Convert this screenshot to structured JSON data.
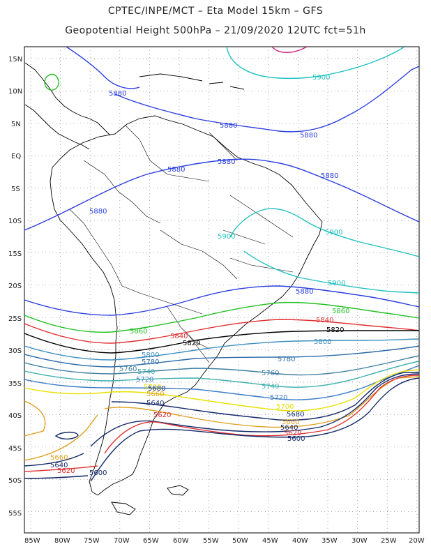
{
  "title_line1": "CPTEC/INPE/MCT –  Eta Model 15km – GFS",
  "title_line2": "Geopotential Height 500hPa – 21/09/2020 12UTC fct=51h",
  "axes": {
    "lat_labels": [
      "15N",
      "10N",
      "5N",
      "EQ",
      "5S",
      "10S",
      "15S",
      "20S",
      "25S",
      "30S",
      "35S",
      "40S",
      "45S",
      "50S",
      "55S"
    ],
    "lon_labels": [
      "85W",
      "80W",
      "75W",
      "70W",
      "65W",
      "60W",
      "55W",
      "50W",
      "45W",
      "40W",
      "35W",
      "30W",
      "25W",
      "20W"
    ]
  },
  "contour_colors": {
    "5900": "#1fc0c0",
    "5880": "#2a3ee0",
    "5860": "#20c020",
    "5840": "#e03030",
    "5820": "#000000",
    "5800": "#3d8fc0",
    "5780": "#2a6aa8",
    "5760": "#3d7fa0",
    "5740": "#3fb0b0",
    "5720": "#3a7cc8",
    "5700": "#e8e000",
    "5680": "#142a6a",
    "5660": "#e0a020",
    "5640": "#142a6a",
    "5620": "#e03030",
    "5600": "#142a6a"
  },
  "contour_labels": [
    {
      "text": "5900",
      "level": "5900"
    },
    {
      "text": "5880",
      "level": "5880"
    },
    {
      "text": "5880",
      "level": "5880"
    },
    {
      "text": "5880",
      "level": "5880"
    },
    {
      "text": "5880",
      "level": "5880"
    },
    {
      "text": "5880",
      "level": "5880"
    },
    {
      "text": "5880",
      "level": "5880"
    },
    {
      "text": "5900",
      "level": "5900"
    },
    {
      "text": "5900",
      "level": "5900"
    },
    {
      "text": "5900",
      "level": "5900"
    },
    {
      "text": "5880",
      "level": "5880"
    },
    {
      "text": "5880",
      "level": "5880"
    },
    {
      "text": "5860",
      "level": "5860"
    },
    {
      "text": "5840",
      "level": "5840"
    },
    {
      "text": "5820",
      "level": "5820"
    },
    {
      "text": "5860",
      "level": "5860"
    },
    {
      "text": "5840",
      "level": "5840"
    },
    {
      "text": "5820",
      "level": "5820"
    },
    {
      "text": "5800",
      "level": "5800"
    },
    {
      "text": "5800",
      "level": "5800"
    },
    {
      "text": "5780",
      "level": "5780"
    },
    {
      "text": "5760",
      "level": "5760"
    },
    {
      "text": "5740",
      "level": "5740"
    },
    {
      "text": "5720",
      "level": "5720"
    },
    {
      "text": "5780",
      "level": "5780"
    },
    {
      "text": "5760",
      "level": "5760"
    },
    {
      "text": "5740",
      "level": "5740"
    },
    {
      "text": "5720",
      "level": "5720"
    },
    {
      "text": "5700",
      "level": "5700"
    },
    {
      "text": "5680",
      "level": "5680"
    },
    {
      "text": "5660",
      "level": "5660"
    },
    {
      "text": "5640",
      "level": "5640"
    },
    {
      "text": "5700",
      "level": "5700"
    },
    {
      "text": "5680",
      "level": "5680"
    },
    {
      "text": "5660",
      "level": "5660"
    },
    {
      "text": "5640",
      "level": "5640"
    },
    {
      "text": "5620",
      "level": "5620"
    },
    {
      "text": "5600",
      "level": "5600"
    },
    {
      "text": "5620",
      "level": "5620"
    },
    {
      "text": "5660",
      "level": "5660"
    },
    {
      "text": "5640",
      "level": "5640"
    },
    {
      "text": "5620",
      "level": "5620"
    },
    {
      "text": "5600",
      "level": "5600"
    }
  ]
}
